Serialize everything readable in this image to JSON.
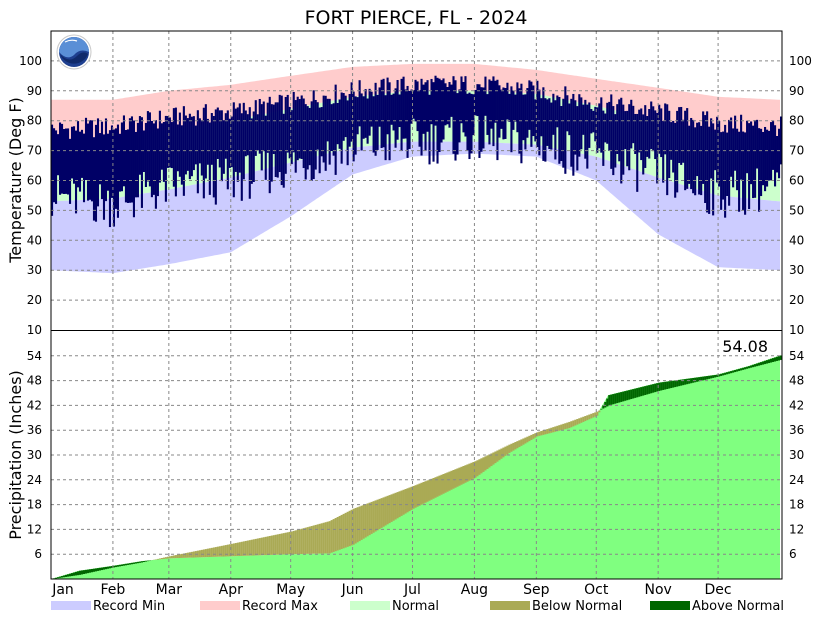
{
  "chart_data": {
    "type": "area",
    "title": "FORT PIERCE, FL - 2024",
    "months": [
      "Jan",
      "Feb",
      "Mar",
      "Apr",
      "May",
      "Jun",
      "Jul",
      "Aug",
      "Sep",
      "Oct",
      "Nov",
      "Dec"
    ],
    "colors": {
      "record_min": "#ccccff",
      "record_max": "#ffcccc",
      "normal": "#ccffcc",
      "observed": "#000066",
      "precip_observed": "#80ff80",
      "below_normal": "#aaaa55",
      "above_normal": "#006600"
    },
    "temperature": {
      "ylabel": "Temperature (Deg F)",
      "ylim": [
        10,
        110
      ],
      "ticks": [
        10,
        20,
        30,
        40,
        50,
        60,
        70,
        80,
        90,
        100
      ],
      "grid": true,
      "day_of_year": [
        1,
        32,
        60,
        91,
        121,
        152,
        182,
        213,
        244,
        274,
        305,
        335,
        366
      ],
      "record_max": [
        87,
        87,
        90,
        92,
        95,
        98,
        99,
        99,
        97,
        94,
        91,
        88,
        87
      ],
      "record_min": [
        30,
        29,
        32,
        36,
        48,
        62,
        68,
        69,
        68,
        60,
        42,
        31,
        30
      ],
      "normal_high": [
        73,
        74,
        77,
        80,
        84,
        88,
        90,
        90,
        89,
        85,
        80,
        76,
        73
      ],
      "normal_low": [
        53,
        54,
        57,
        61,
        66,
        71,
        73,
        73,
        72,
        68,
        61,
        55,
        53
      ],
      "observed_high": [
        77,
        78,
        81,
        83,
        86,
        90,
        92,
        92,
        90,
        86,
        83,
        79,
        78
      ],
      "observed_low": [
        55,
        52,
        58,
        60,
        65,
        71,
        73,
        74,
        72,
        68,
        62,
        55,
        58
      ]
    },
    "precipitation": {
      "ylabel": "Precipitation (Inches)",
      "ylim": [
        0,
        60
      ],
      "ticks": [
        6,
        12,
        18,
        24,
        30,
        36,
        42,
        48,
        54
      ],
      "grid": true,
      "total_label": "54.08",
      "day_of_year": [
        1,
        15,
        32,
        46,
        60,
        91,
        121,
        140,
        152,
        182,
        213,
        230,
        244,
        260,
        274,
        280,
        305,
        335,
        350,
        366
      ],
      "normal": [
        0,
        1.0,
        2.8,
        4.0,
        5.5,
        8.5,
        11.5,
        14.0,
        17.0,
        22.5,
        28.5,
        32.5,
        35.5,
        38.0,
        40.5,
        42.0,
        45.5,
        49.0,
        51.0,
        53.0
      ],
      "observed": [
        0,
        2.0,
        3.2,
        4.3,
        5.0,
        5.5,
        6.0,
        6.2,
        8.3,
        17.0,
        24.5,
        30.5,
        34.5,
        36.5,
        39.5,
        44.5,
        47.5,
        49.5,
        51.5,
        54.08
      ]
    },
    "legend": [
      {
        "label": "Record Min",
        "color": "#ccccff"
      },
      {
        "label": "Record Max",
        "color": "#ffcccc"
      },
      {
        "label": "Normal",
        "color": "#ccffcc"
      },
      {
        "label": "Below Normal",
        "color": "#aaaa55"
      },
      {
        "label": "Above Normal",
        "color": "#006600"
      }
    ]
  }
}
